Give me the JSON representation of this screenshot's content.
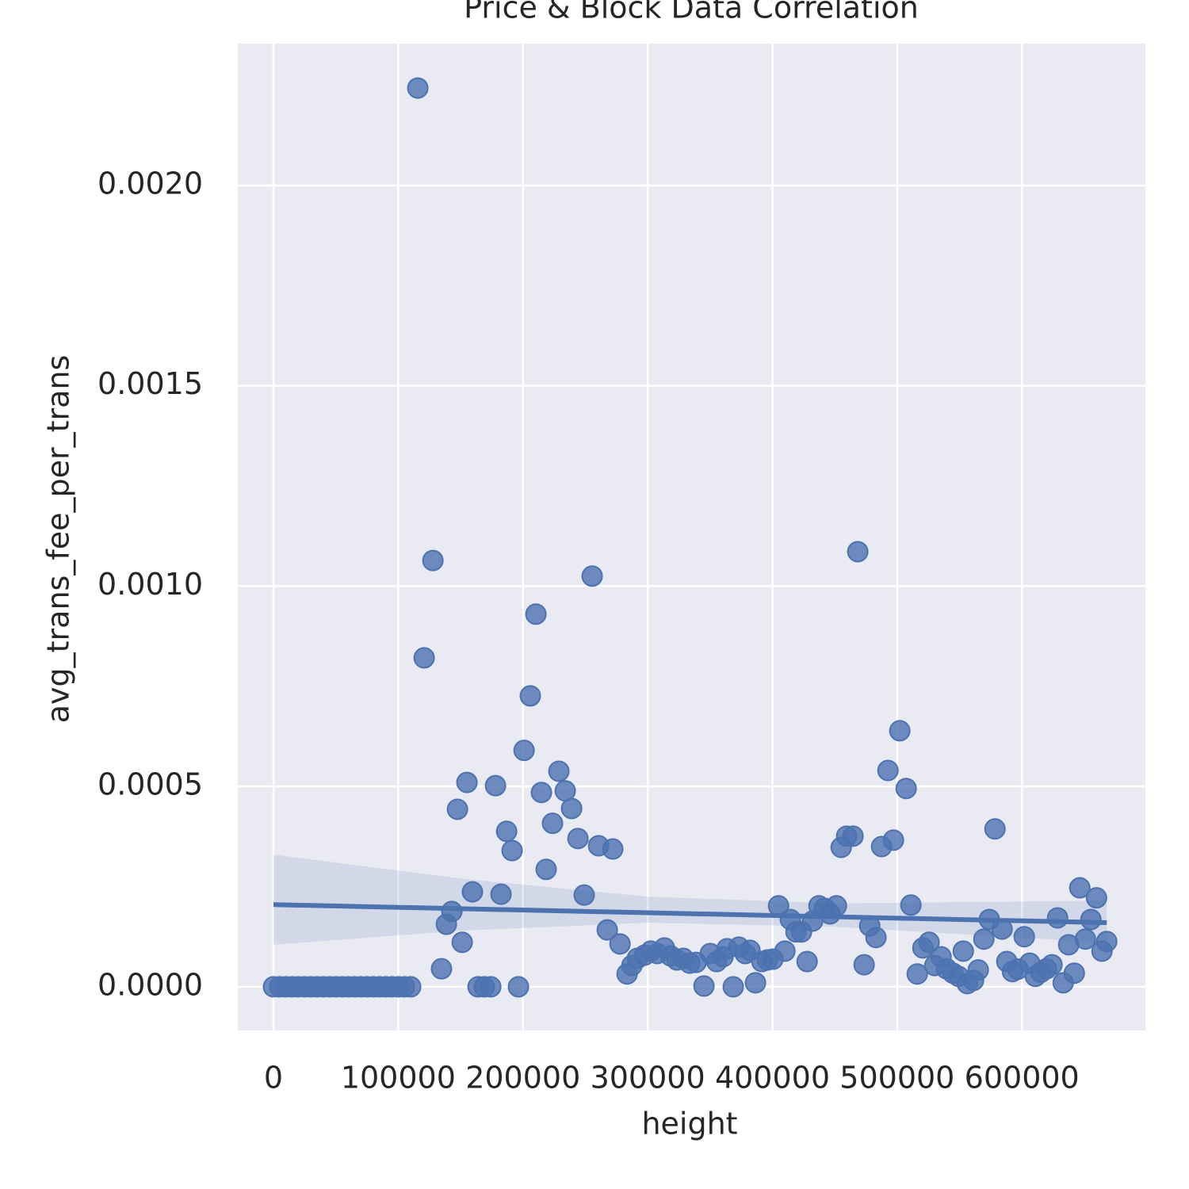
{
  "chart_data": {
    "type": "scatter",
    "title": "Price & Block Data Correlation",
    "x_label": "height",
    "y_label": "avg_trans_fee_per_trans",
    "color": "#4c72b0",
    "grid": true,
    "xlim": [
      -28600,
      699000
    ],
    "ylim": [
      -0.000109,
      0.002354
    ],
    "xticks": [
      0,
      100000,
      200000,
      300000,
      400000,
      500000,
      600000
    ],
    "yticks": [
      {
        "value": 0,
        "label": "0.0000"
      },
      0.0005,
      {
        "value": 0.001,
        "label": "0.0010"
      },
      0.0015,
      {
        "value": 0.002,
        "label": "0.0020"
      }
    ],
    "x": [
      0,
      5000,
      10000,
      15000,
      20000,
      25000,
      30000,
      35000,
      40000,
      45000,
      50000,
      55000,
      60000,
      65000,
      70000,
      75000,
      80000,
      85000,
      90000,
      95000,
      100000,
      105000,
      110000,
      115700,
      120800,
      127800,
      134700,
      138600,
      143000,
      147500,
      151300,
      155100,
      159500,
      164000,
      169000,
      174200,
      178000,
      182400,
      186900,
      191300,
      196400,
      200900,
      205900,
      210400,
      214800,
      218600,
      223700,
      228800,
      233900,
      239000,
      244100,
      249100,
      255500,
      260600,
      267600,
      272000,
      277800,
      283500,
      287300,
      291700,
      297500,
      302500,
      307600,
      313400,
      318400,
      323500,
      328600,
      333700,
      338800,
      345100,
      350200,
      355300,
      360400,
      363600,
      368600,
      373100,
      378200,
      382000,
      386400,
      391500,
      396000,
      400400,
      404900,
      410000,
      414400,
      418900,
      423300,
      427800,
      432200,
      437300,
      441700,
      446200,
      451300,
      455100,
      459500,
      464600,
      468400,
      473500,
      478000,
      483000,
      487500,
      492600,
      497000,
      502100,
      507200,
      511000,
      516100,
      520600,
      525600,
      530100,
      535200,
      539600,
      544700,
      549200,
      553000,
      556200,
      561200,
      565000,
      569500,
      573900,
      578400,
      584100,
      587900,
      592400,
      596800,
      601900,
      606300,
      610800,
      615200,
      619700,
      624100,
      628600,
      633100,
      637500,
      642000,
      646400,
      650900,
      655300,
      659800,
      664200,
      668000
    ],
    "values": [
      0,
      0,
      0,
      0,
      0,
      0,
      0,
      0,
      0,
      0,
      0,
      0,
      0,
      0,
      0,
      0,
      0,
      0,
      0,
      0,
      0,
      0,
      0,
      0.002243,
      0.000821,
      0.001064,
      4.5e-05,
      0.000156,
      0.000188,
      0.000443,
      0.000111,
      0.00051,
      0.000237,
      0,
      0,
      0,
      0.000502,
      0.000231,
      0.000388,
      0.00034,
      0,
      0.00059,
      0.000726,
      0.00093,
      0.000485,
      0.000293,
      0.000408,
      0.000538,
      0.000489,
      0.000445,
      0.00037,
      0.000229,
      0.001025,
      0.000352,
      0.000142,
      0.000344,
      0.000107,
      3.2e-05,
      5.3e-05,
      7.1e-05,
      7.9e-05,
      8.9e-05,
      8.3e-05,
      9.7e-05,
      7.7e-05,
      6.7e-05,
      7.1e-05,
      5.9e-05,
      6.1e-05,
      2e-06,
      8.3e-05,
      6.3e-05,
      7.5e-05,
      9.5e-05,
      0,
      9.9e-05,
      8.3e-05,
      9.1e-05,
      1e-05,
      6.3e-05,
      6.7e-05,
      6.9e-05,
      0.000202,
      8.9e-05,
      0.000168,
      0.000137,
      0.000137,
      6.3e-05,
      0.000164,
      0.000202,
      0.000196,
      0.000182,
      0.000202,
      0.000348,
      0.000376,
      0.000376,
      0.001086,
      5.5e-05,
      0.000152,
      0.000123,
      0.00035,
      0.00054,
      0.000366,
      0.000639,
      0.000495,
      0.000204,
      3.2e-05,
      9.7e-05,
      0.000111,
      5.3e-05,
      7.5e-05,
      4.5e-05,
      3.4e-05,
      2.6e-05,
      8.9e-05,
      8e-06,
      1.6e-05,
      4.2e-05,
      0.000119,
      0.000168,
      0.000394,
      0.000144,
      6.3e-05,
      3.8e-05,
      4.4e-05,
      0.000125,
      5.9e-05,
      2.6e-05,
      3.6e-05,
      4.5e-05,
      5.5e-05,
      0.000172,
      1e-05,
      0.000105,
      3.4e-05,
      0.000247,
      0.000119,
      0.000168,
      0.000222,
      8.9e-05,
      0.000113
    ],
    "regression": {
      "x": [
        0,
        668000
      ],
      "values": [
        0.000205,
        0.00016
      ],
      "band_x": [
        0,
        150000,
        300000,
        450000,
        668000
      ],
      "band_upper": [
        0.00033,
        0.00027,
        0.000225,
        0.000208,
        0.000215
      ],
      "band_lower": [
        0.000105,
        0.00014,
        0.00016,
        0.00015,
        0.00011
      ]
    }
  }
}
